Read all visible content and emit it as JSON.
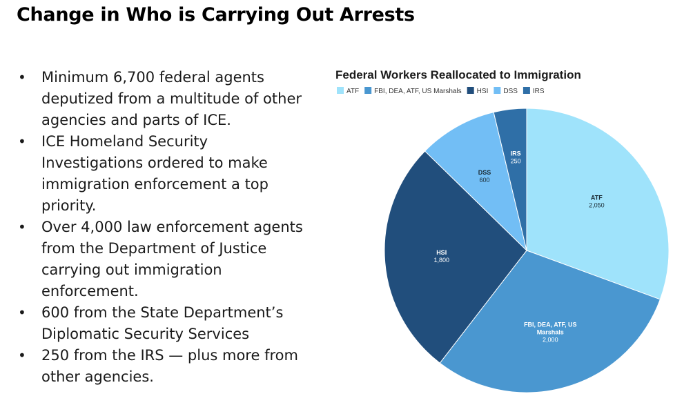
{
  "slide": {
    "title": "Change in Who is Carrying Out Arrests",
    "bullets": [
      "Minimum 6,700 federal agents deputized from a multitude of other agencies and parts of ICE.",
      "ICE Homeland Security Investigations ordered to make immigration enforcement a top priority.",
      "Over 4,000 law enforcement agents from the Department of Justice carrying out immigration enforcement.",
      "600 from the State Department’s Diplomatic Security Services",
      "250 from the IRS — plus more from other agencies."
    ],
    "bullet_glyph": "•"
  },
  "chart_data": {
    "type": "pie",
    "title": "Federal Workers Reallocated to Immigration",
    "legend_position": "top",
    "slices": [
      {
        "name": "ATF",
        "label": "ATF",
        "value": 2050,
        "value_label": "2,050",
        "color": "#9fe3fb",
        "text_color": "#1a2a33"
      },
      {
        "name": "FBI, DEA, ATF, US Marshals",
        "label": "FBI, DEA, ATF, US Marshals",
        "value": 2000,
        "value_label": "2,000",
        "color": "#4a97d0",
        "text_color": "#ffffff"
      },
      {
        "name": "HSI",
        "label": "HSI",
        "value": 1800,
        "value_label": "1,800",
        "color": "#214e7c",
        "text_color": "#ffffff"
      },
      {
        "name": "DSS",
        "label": "DSS",
        "value": 600,
        "value_label": "600",
        "color": "#72bef5",
        "text_color": "#1a2a33"
      },
      {
        "name": "IRS",
        "label": "IRS",
        "value": 250,
        "value_label": "250",
        "color": "#2f6fa7",
        "text_color": "#ffffff"
      }
    ]
  }
}
